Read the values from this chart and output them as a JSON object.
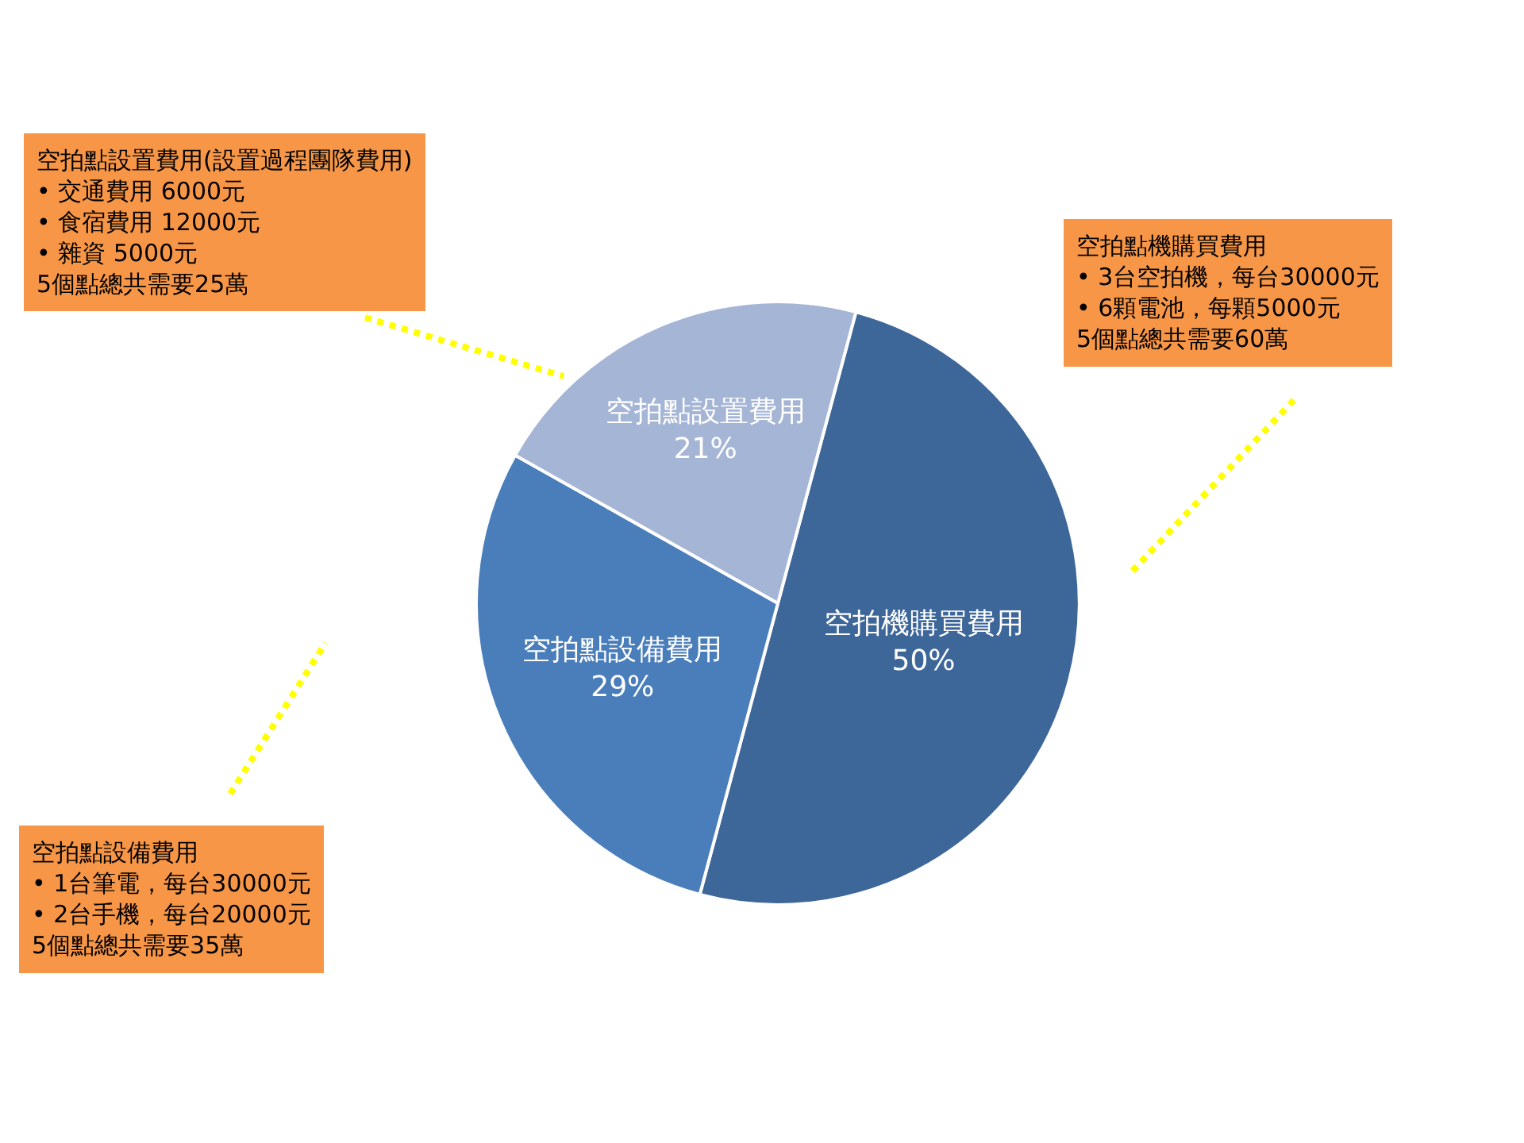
{
  "chart_data": {
    "type": "pie",
    "categories": [
      "空拍機購買費用",
      "空拍點設備費用",
      "空拍點設置費用"
    ],
    "values": [
      50,
      29,
      21
    ],
    "value_labels": [
      "50%",
      "29%",
      "21%"
    ],
    "colors": [
      "#3d6699",
      "#4a7ebb",
      "#a5b5d6"
    ],
    "legend": false,
    "annotations": [
      "空拍點設置費用(設置過程團隊費用)\n• 交通費用 6000元\n• 食宿費用 12000元\n• 雜資 5000元\n5個點總共需要25萬",
      "空拍點機購買費用\n• 3台空拍機，每台30000元\n• 6顆電池，每顆5000元\n5個點總共需要60萬",
      "空拍點設備費用\n• 1台筆電，每台30000元\n• 2台手機，每台20000元\n5個點總共需要35萬"
    ]
  }
}
